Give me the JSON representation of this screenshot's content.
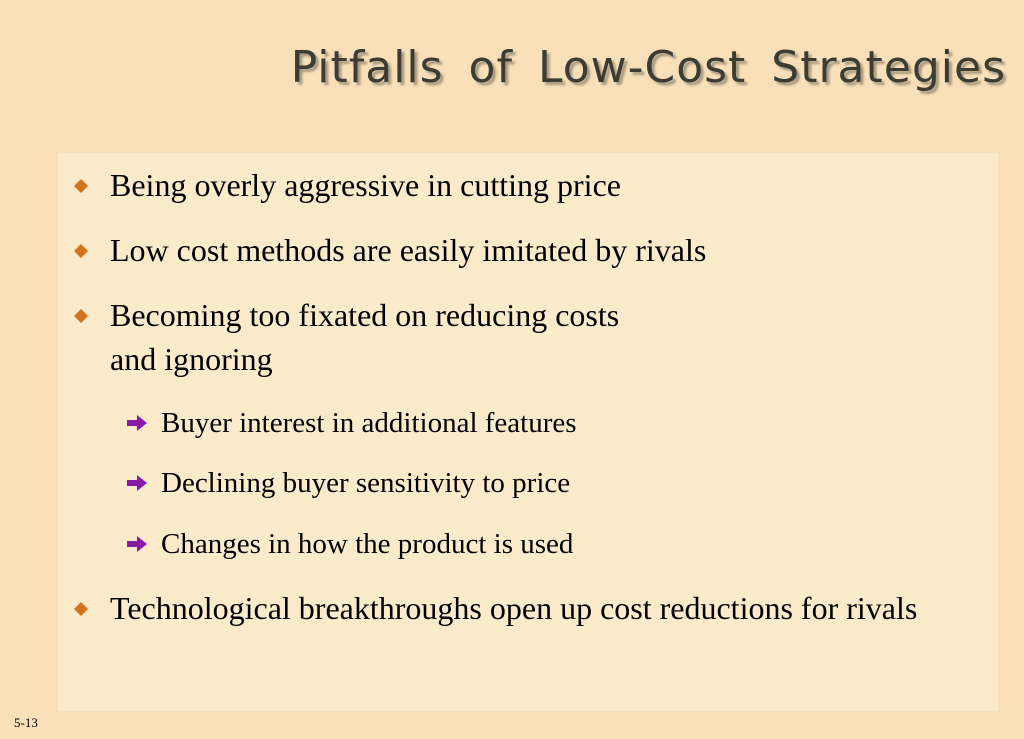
{
  "slide": {
    "title": "Pitfalls of Low-Cost Strategies",
    "page_number": "5-13",
    "bullets": [
      {
        "text": "Being overly aggressive in cutting price"
      },
      {
        "text": "Low cost methods are easily imitated by rivals"
      },
      {
        "line1": "Becoming too fixated on reducing costs",
        "line2": "and ignoring"
      },
      {
        "text": "Technological breakthroughs open up cost reductions for rivals"
      }
    ],
    "sub_bullets": [
      {
        "text": "Buyer interest in additional features"
      },
      {
        "text": "Declining buyer sensitivity to price"
      },
      {
        "text": "Changes in how the product is used"
      }
    ]
  },
  "colors": {
    "background": "#fae0b8",
    "content_box": "#fbebcb",
    "diamond_bullet": "#d4731c",
    "arrow_bullet": "#8a1aa8",
    "title": "#3c3c34"
  },
  "icons": {
    "bullet": "orange-diamond-icon",
    "sub_bullet": "purple-arrow-icon"
  }
}
